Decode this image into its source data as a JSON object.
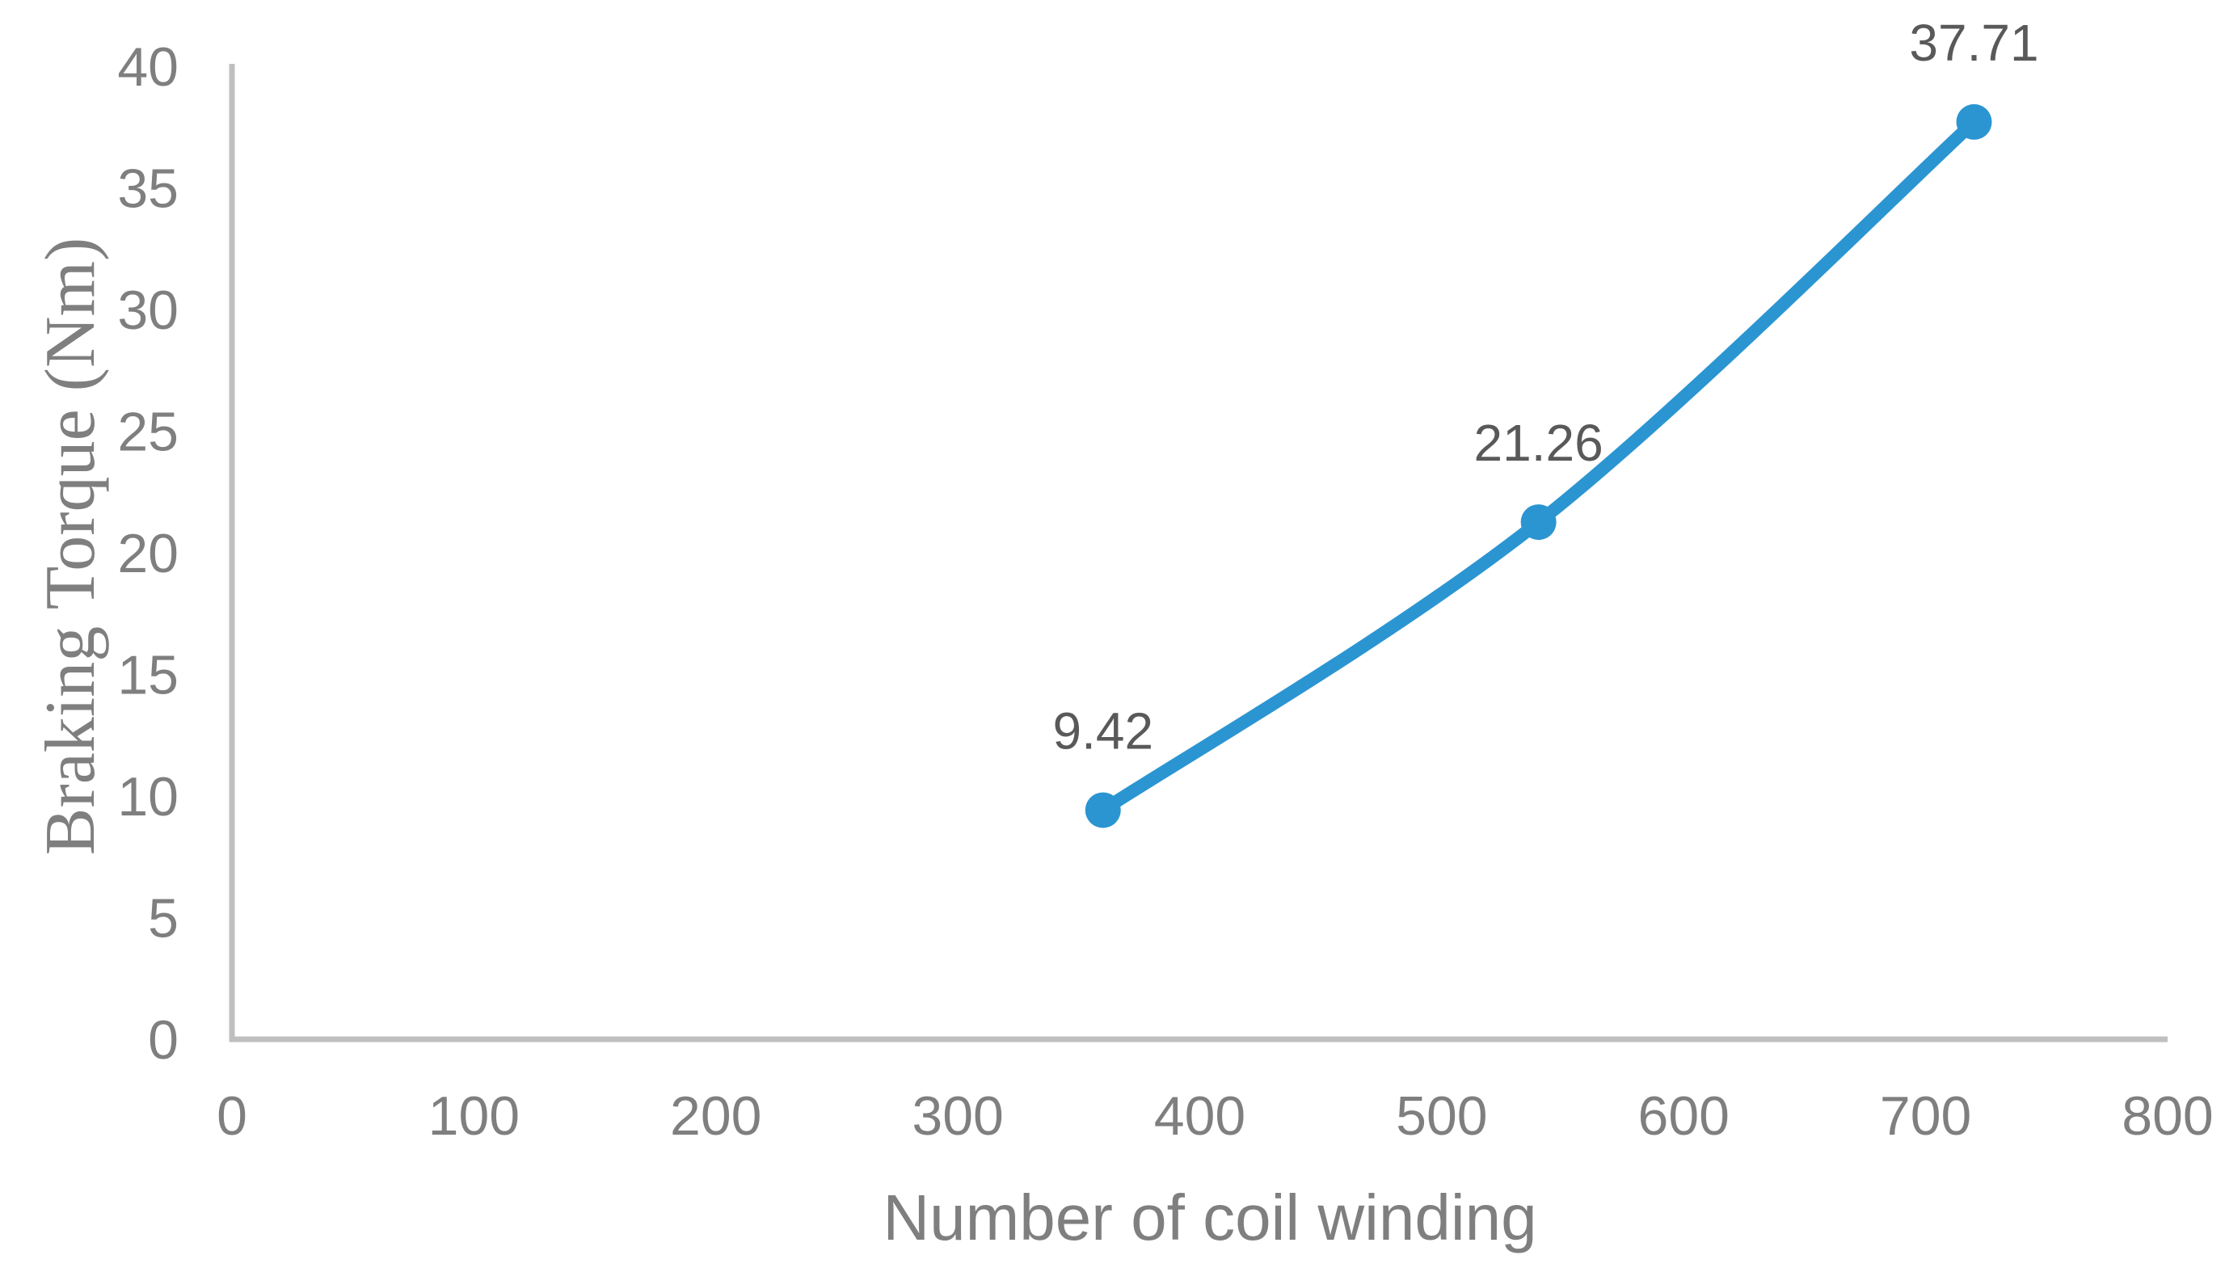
{
  "figure": {
    "background": "#FFFFFF"
  },
  "chart_data": {
    "type": "line",
    "title": "",
    "xlabel": "Number of coil winding",
    "ylabel": "Braking Torque (Nm)",
    "x": [
      360,
      540,
      720
    ],
    "y": [
      9.42,
      21.26,
      37.71
    ],
    "data_labels": [
      "9.42",
      "21.26",
      "37.71"
    ],
    "xlim": [
      0,
      800
    ],
    "ylim": [
      0,
      40
    ],
    "xticks": [
      0,
      100,
      200,
      300,
      400,
      500,
      600,
      700,
      800
    ],
    "yticks": [
      0,
      5,
      10,
      15,
      20,
      25,
      30,
      35,
      40
    ],
    "grid": false,
    "legend": false,
    "smooth_line": true,
    "marker": "circle",
    "colors": {
      "line": "#2B95D2",
      "marker": "#2B95D2",
      "axis_line": "#BFBFBF",
      "tick_labels": "#7F7F7F",
      "axis_titles": "#7F7F7F",
      "data_labels": "#595959"
    }
  }
}
